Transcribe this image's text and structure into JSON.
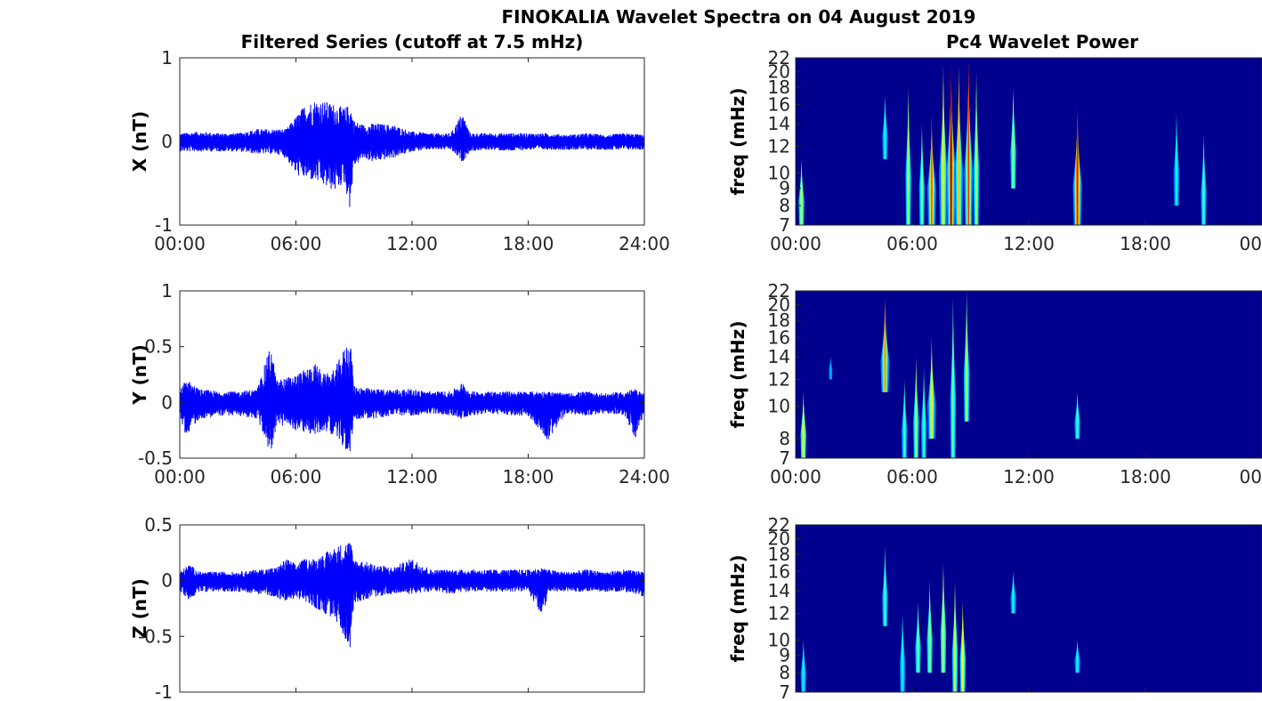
{
  "figure_title": "FINOKALIA Wavelet Spectra on 04 August 2019",
  "left_column_title": "Filtered Series (cutoff at 7.5 mHz)",
  "right_column_title": "Pc4 Wavelet Power",
  "colors": {
    "trace": "#0000ff",
    "background": "#00008f",
    "axis": "#262626",
    "text": "#000000"
  },
  "chart_data": [
    {
      "type": "line",
      "panel": "X",
      "ylabel": "X (nT)",
      "xlabel": "",
      "xlim": [
        0,
        24
      ],
      "ylim": [
        -1,
        1
      ],
      "xticks": [
        "00:00",
        "06:00",
        "12:00",
        "18:00",
        "24:00"
      ],
      "yticks": [
        "1",
        "0",
        "-1"
      ],
      "series": [
        {
          "x": [
            0,
            1,
            2,
            3,
            4,
            5,
            5.5,
            6,
            6.5,
            7,
            7.5,
            8,
            8.5,
            8.8,
            9,
            9.5,
            10,
            11,
            12,
            13,
            14,
            14.6,
            15,
            16,
            17,
            18,
            19,
            20,
            21,
            22,
            23,
            24
          ],
          "upper": [
            0.1,
            0.12,
            0.1,
            0.1,
            0.15,
            0.15,
            0.15,
            0.3,
            0.45,
            0.5,
            0.48,
            0.45,
            0.4,
            0.45,
            0.25,
            0.2,
            0.22,
            0.2,
            0.12,
            0.1,
            0.1,
            0.35,
            0.1,
            0.1,
            0.1,
            0.1,
            0.1,
            0.08,
            0.1,
            0.08,
            0.1,
            0.08
          ],
          "lower": [
            -0.12,
            -0.12,
            -0.12,
            -0.12,
            -0.15,
            -0.15,
            -0.2,
            -0.4,
            -0.45,
            -0.48,
            -0.55,
            -0.6,
            -0.5,
            -0.82,
            -0.3,
            -0.2,
            -0.25,
            -0.2,
            -0.12,
            -0.1,
            -0.1,
            -0.25,
            -0.12,
            -0.1,
            -0.12,
            -0.1,
            -0.1,
            -0.1,
            -0.1,
            -0.1,
            -0.1,
            -0.1
          ]
        }
      ]
    },
    {
      "type": "line",
      "panel": "Y",
      "ylabel": "Y (nT)",
      "xlabel": "",
      "xlim": [
        0,
        24
      ],
      "ylim": [
        -0.5,
        1
      ],
      "xticks": [
        "00:00",
        "06:00",
        "12:00",
        "18:00",
        "24:00"
      ],
      "yticks": [
        "1",
        "0.5",
        "0",
        "-0.5"
      ],
      "series": [
        {
          "x": [
            0,
            0.3,
            1,
            2,
            3,
            4,
            4.7,
            5,
            6,
            7,
            7.5,
            8,
            8.8,
            9,
            10,
            11,
            12,
            13,
            14,
            14.6,
            15,
            16,
            17,
            18,
            19,
            20,
            21,
            22,
            23,
            23.5,
            24
          ],
          "upper": [
            0.1,
            0.22,
            0.12,
            0.1,
            0.1,
            0.12,
            0.52,
            0.2,
            0.25,
            0.35,
            0.25,
            0.3,
            0.6,
            0.15,
            0.12,
            0.12,
            0.12,
            0.1,
            0.1,
            0.18,
            0.1,
            0.1,
            0.1,
            0.1,
            0.1,
            0.08,
            0.1,
            0.08,
            0.1,
            0.12,
            0.08
          ],
          "lower": [
            -0.12,
            -0.3,
            -0.15,
            -0.12,
            -0.12,
            -0.15,
            -0.47,
            -0.2,
            -0.25,
            -0.3,
            -0.25,
            -0.3,
            -0.48,
            -0.15,
            -0.15,
            -0.12,
            -0.12,
            -0.1,
            -0.12,
            -0.15,
            -0.12,
            -0.1,
            -0.12,
            -0.12,
            -0.35,
            -0.1,
            -0.12,
            -0.1,
            -0.12,
            -0.35,
            -0.1
          ]
        }
      ]
    },
    {
      "type": "line",
      "panel": "Z",
      "ylabel": "Z (nT)",
      "xlabel": "",
      "xlim": [
        0,
        24
      ],
      "ylim": [
        -1,
        0.5
      ],
      "xticks": [],
      "yticks": [
        "0.5",
        "0",
        "-0.5",
        "-1"
      ],
      "series": [
        {
          "x": [
            0,
            0.5,
            1,
            2,
            3,
            4,
            5,
            5.5,
            6,
            6.5,
            7,
            7.5,
            8,
            8.8,
            9,
            10,
            11,
            12,
            13,
            14,
            15,
            16,
            17,
            18,
            18.8,
            19,
            20,
            21,
            22,
            23,
            24
          ],
          "upper": [
            0.08,
            0.15,
            0.08,
            0.08,
            0.08,
            0.1,
            0.12,
            0.2,
            0.15,
            0.2,
            0.2,
            0.25,
            0.3,
            0.37,
            0.2,
            0.15,
            0.12,
            0.2,
            0.1,
            0.1,
            0.1,
            0.1,
            0.1,
            0.1,
            0.12,
            0.1,
            0.08,
            0.1,
            0.08,
            0.1,
            0.08
          ],
          "lower": [
            -0.1,
            -0.18,
            -0.1,
            -0.1,
            -0.1,
            -0.12,
            -0.15,
            -0.2,
            -0.15,
            -0.2,
            -0.25,
            -0.3,
            -0.35,
            -0.6,
            -0.2,
            -0.15,
            -0.12,
            -0.12,
            -0.1,
            -0.12,
            -0.1,
            -0.1,
            -0.1,
            -0.1,
            -0.35,
            -0.1,
            -0.1,
            -0.1,
            -0.1,
            -0.1,
            -0.15
          ]
        }
      ]
    },
    {
      "type": "heatmap",
      "panel": "X-wavelet",
      "ylabel": "freq (mHz)",
      "xlabel": "",
      "xlim": [
        0,
        24
      ],
      "ylim": [
        7,
        22
      ],
      "y_scale": "log",
      "colormap": "jet",
      "xticks": [
        "00:00",
        "06:00",
        "12:00",
        "18:00",
        "00"
      ],
      "yticks": [
        "22",
        "20",
        "18",
        "16",
        "14",
        "12",
        "10",
        "9",
        "8",
        "7"
      ],
      "features": [
        {
          "t": 0.3,
          "fmin": 7,
          "fmax": 11,
          "power": 0.5
        },
        {
          "t": 4.6,
          "fmin": 11,
          "fmax": 17,
          "power": 0.3
        },
        {
          "t": 5.8,
          "fmin": 7,
          "fmax": 18,
          "power": 0.45
        },
        {
          "t": 6.5,
          "fmin": 7,
          "fmax": 14,
          "power": 0.4
        },
        {
          "t": 7.0,
          "fmin": 7,
          "fmax": 15,
          "power": 0.75
        },
        {
          "t": 7.6,
          "fmin": 7,
          "fmax": 21,
          "power": 0.6
        },
        {
          "t": 8.0,
          "fmin": 7,
          "fmax": 22,
          "power": 0.95
        },
        {
          "t": 8.4,
          "fmin": 7,
          "fmax": 21,
          "power": 0.65
        },
        {
          "t": 8.9,
          "fmin": 7,
          "fmax": 22,
          "power": 0.8
        },
        {
          "t": 9.3,
          "fmin": 7,
          "fmax": 20,
          "power": 0.45
        },
        {
          "t": 11.2,
          "fmin": 9,
          "fmax": 18,
          "power": 0.45
        },
        {
          "t": 14.5,
          "fmin": 7,
          "fmax": 16,
          "power": 0.85
        },
        {
          "t": 19.6,
          "fmin": 8,
          "fmax": 15,
          "power": 0.3
        },
        {
          "t": 21.0,
          "fmin": 7,
          "fmax": 13,
          "power": 0.35
        }
      ]
    },
    {
      "type": "heatmap",
      "panel": "Y-wavelet",
      "ylabel": "freq (mHz)",
      "xlabel": "",
      "xlim": [
        0,
        24
      ],
      "ylim": [
        7,
        22
      ],
      "y_scale": "log",
      "colormap": "jet",
      "xticks": [
        "00:00",
        "06:00",
        "12:00",
        "18:00",
        "00"
      ],
      "yticks": [
        "22",
        "20",
        "18",
        "16",
        "14",
        "12",
        "10",
        "8",
        "7"
      ],
      "features": [
        {
          "t": 0.4,
          "fmin": 7,
          "fmax": 11,
          "power": 0.55
        },
        {
          "t": 1.8,
          "fmin": 12,
          "fmax": 14,
          "power": 0.2
        },
        {
          "t": 4.6,
          "fmin": 11,
          "fmax": 21,
          "power": 0.7
        },
        {
          "t": 5.6,
          "fmin": 7,
          "fmax": 12,
          "power": 0.35
        },
        {
          "t": 6.2,
          "fmin": 7,
          "fmax": 14,
          "power": 0.45
        },
        {
          "t": 6.6,
          "fmin": 7,
          "fmax": 13,
          "power": 0.35
        },
        {
          "t": 7.0,
          "fmin": 8,
          "fmax": 16,
          "power": 0.6
        },
        {
          "t": 8.1,
          "fmin": 7,
          "fmax": 21,
          "power": 0.4
        },
        {
          "t": 8.8,
          "fmin": 9,
          "fmax": 22,
          "power": 0.45
        },
        {
          "t": 14.5,
          "fmin": 8,
          "fmax": 11,
          "power": 0.35
        }
      ]
    },
    {
      "type": "heatmap",
      "panel": "Z-wavelet",
      "ylabel": "freq (mHz)",
      "xlabel": "",
      "xlim": [
        0,
        24
      ],
      "ylim": [
        7,
        22
      ],
      "y_scale": "log",
      "colormap": "jet",
      "xticks": [],
      "yticks": [
        "22",
        "20",
        "18",
        "16",
        "14",
        "12",
        "10",
        "9",
        "8",
        "7"
      ],
      "features": [
        {
          "t": 0.4,
          "fmin": 7,
          "fmax": 10,
          "power": 0.3
        },
        {
          "t": 4.6,
          "fmin": 11,
          "fmax": 19,
          "power": 0.35
        },
        {
          "t": 5.5,
          "fmin": 7,
          "fmax": 12,
          "power": 0.3
        },
        {
          "t": 6.3,
          "fmin": 8,
          "fmax": 13,
          "power": 0.4
        },
        {
          "t": 6.9,
          "fmin": 8,
          "fmax": 15,
          "power": 0.45
        },
        {
          "t": 7.6,
          "fmin": 8,
          "fmax": 17,
          "power": 0.5
        },
        {
          "t": 8.2,
          "fmin": 7,
          "fmax": 15,
          "power": 0.5
        },
        {
          "t": 8.6,
          "fmin": 7,
          "fmax": 13,
          "power": 0.55
        },
        {
          "t": 11.2,
          "fmin": 12,
          "fmax": 16,
          "power": 0.3
        },
        {
          "t": 14.5,
          "fmin": 8,
          "fmax": 10,
          "power": 0.3
        }
      ]
    }
  ]
}
